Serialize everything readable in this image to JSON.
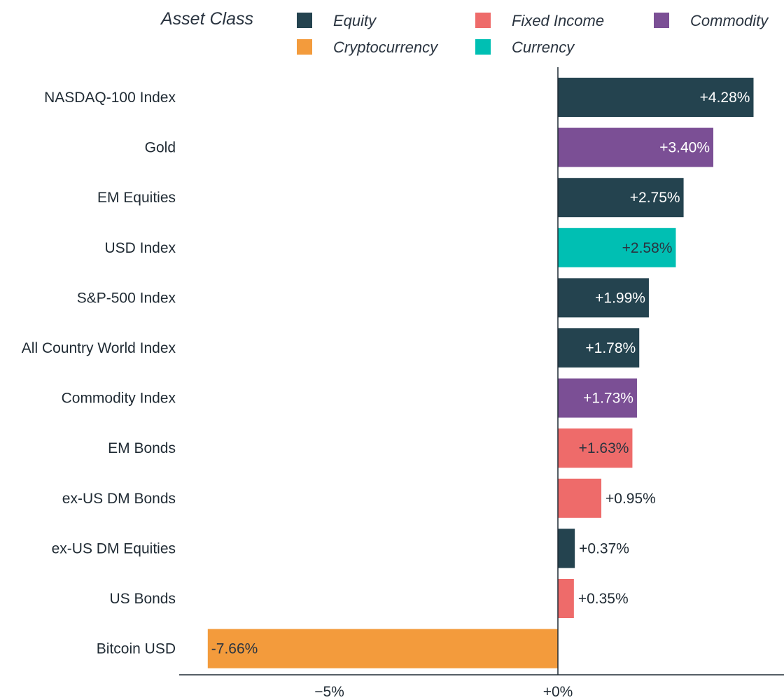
{
  "chart_data": {
    "type": "bar",
    "orientation": "horizontal",
    "title": "",
    "xlabel": "",
    "ylabel": "",
    "legend": {
      "title": "Asset Class",
      "placement": "top",
      "entries": [
        {
          "name": "Equity",
          "color": "#24434f"
        },
        {
          "name": "Fixed Income",
          "color": "#ee6b6a"
        },
        {
          "name": "Commodity",
          "color": "#7b4f95"
        },
        {
          "name": "Cryptocurrency",
          "color": "#f39b3c"
        },
        {
          "name": "Currency",
          "color": "#00bfb3"
        }
      ]
    },
    "categories": [
      "NASDAQ-100 Index",
      "Gold",
      "EM Equities",
      "USD Index",
      "S&P-500 Index ",
      "All Country World Index",
      "Commodity Index",
      "EM Bonds",
      "ex-US DM Bonds",
      "ex-US DM Equities",
      "US Bonds",
      "Bitcoin USD"
    ],
    "values": [
      4.28,
      3.4,
      2.75,
      2.58,
      1.99,
      1.78,
      1.73,
      1.63,
      0.95,
      0.37,
      0.35,
      -7.66
    ],
    "value_labels": [
      "+4.28%",
      "+3.40%",
      "+2.75%",
      "+2.58%",
      "+1.99%",
      "+1.78%",
      "+1.73%",
      "+1.63%",
      "+0.95%",
      "+0.37%",
      "+0.35%",
      "-7.66%"
    ],
    "asset_class": [
      "Equity",
      "Commodity",
      "Equity",
      "Currency",
      "Equity",
      "Equity",
      "Commodity",
      "Fixed Income",
      "Fixed Income",
      "Equity",
      "Fixed Income",
      "Cryptocurrency"
    ],
    "xlim": [
      -8.3,
      4.9
    ],
    "xticks": [
      -5,
      0
    ],
    "xtick_labels": [
      "−5%",
      "+0%"
    ],
    "grid": false
  }
}
